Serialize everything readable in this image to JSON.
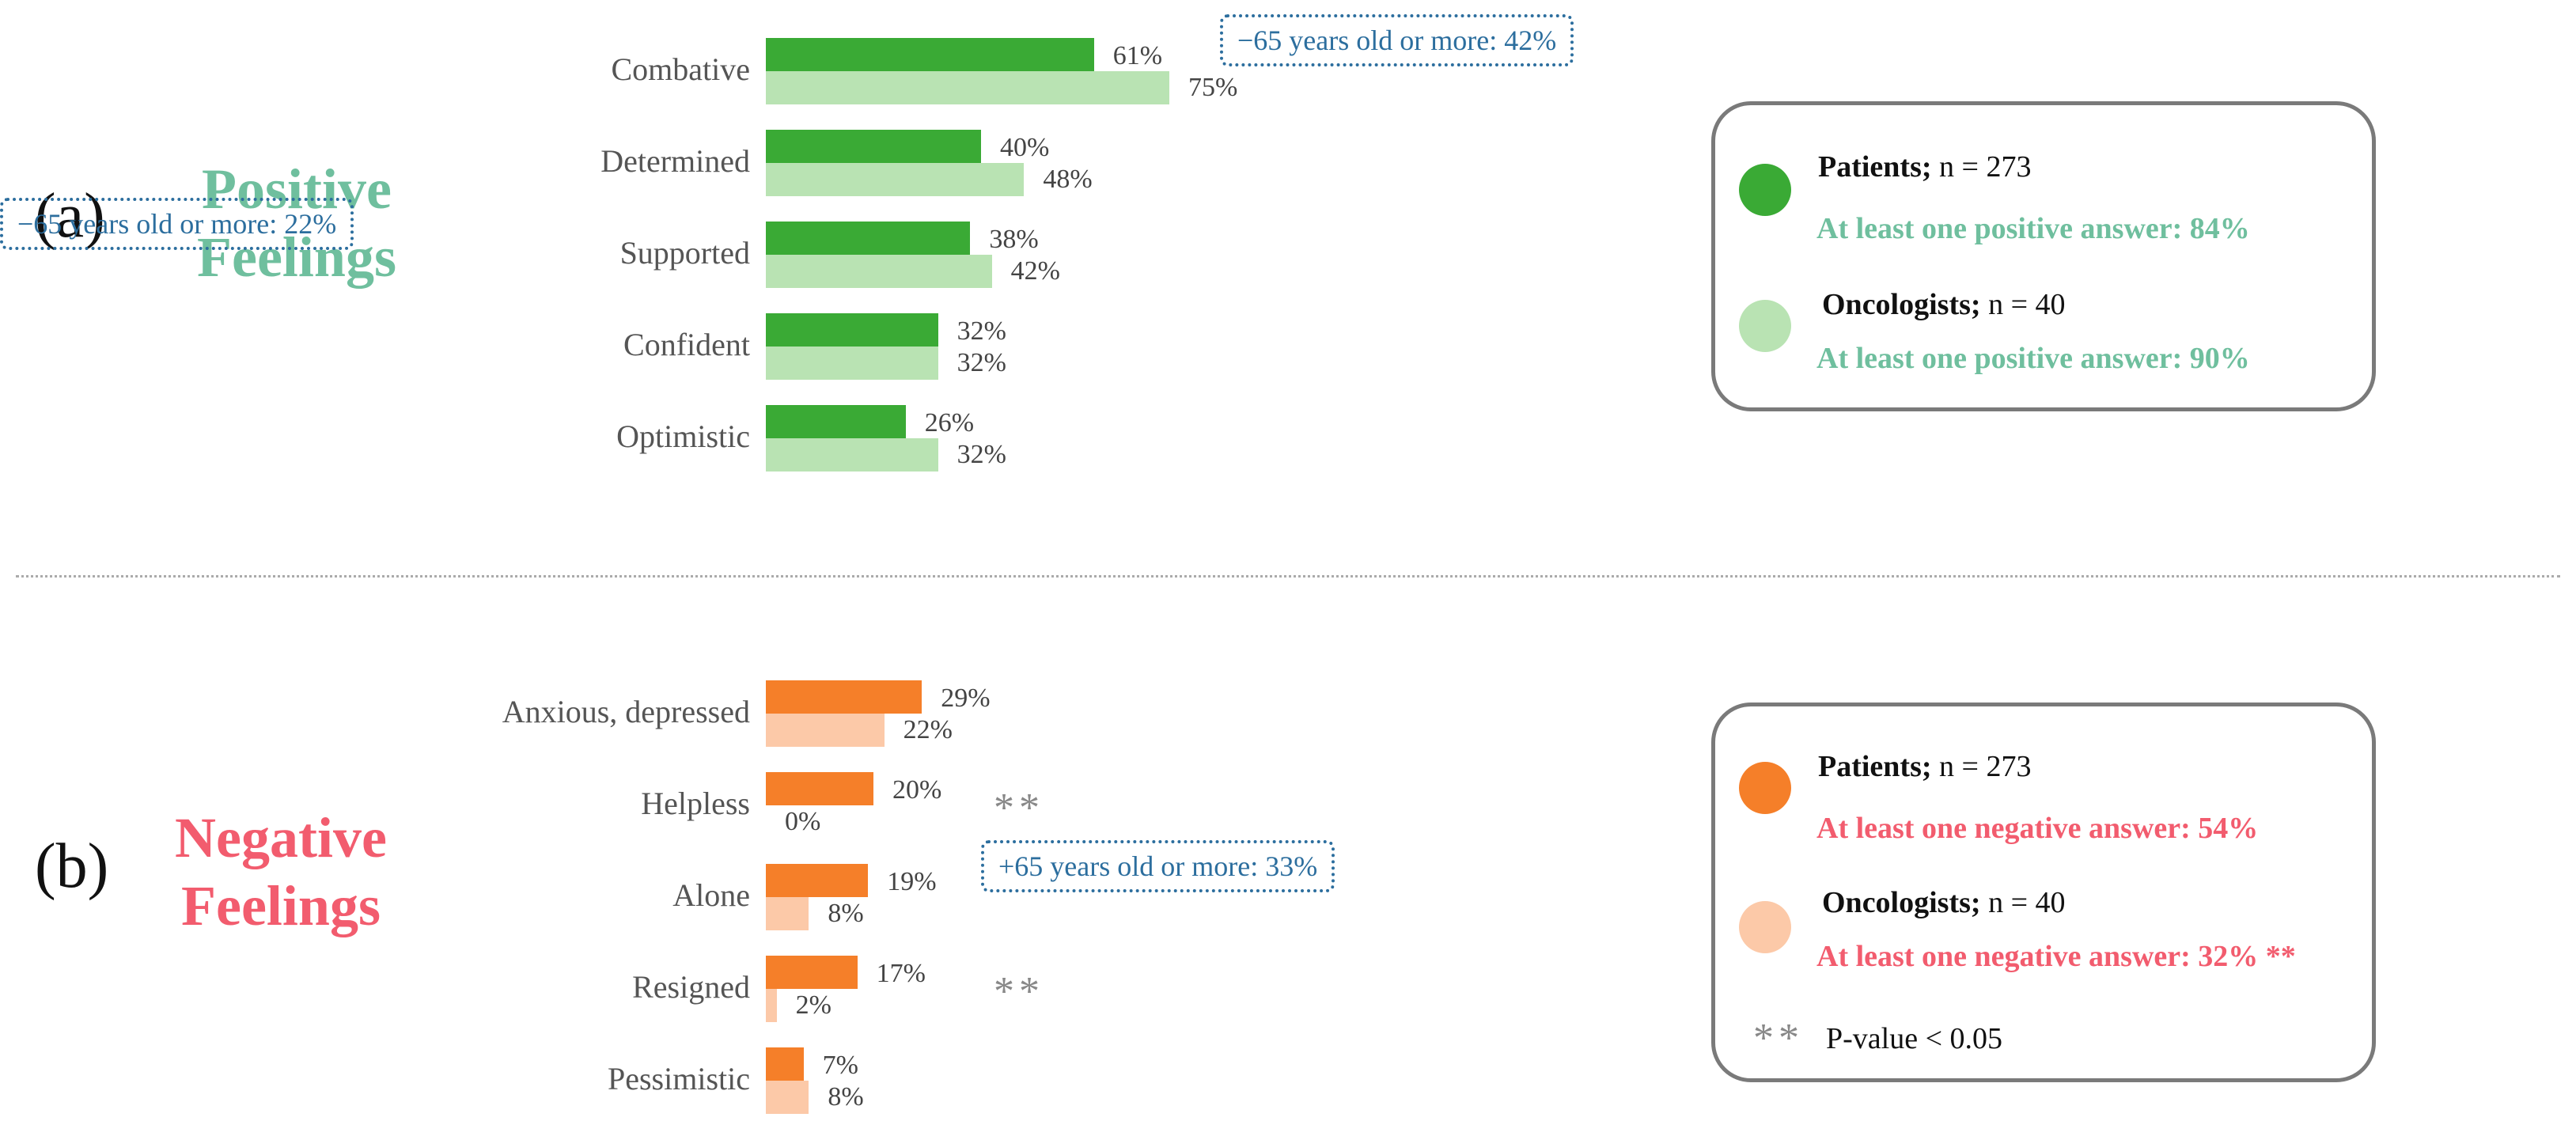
{
  "colors": {
    "positive_patients": "#3aaa35",
    "positive_oncologists": "#b9e3b3",
    "negative_patients": "#f57f29",
    "negative_oncologists": "#fcc9a8",
    "positive_title": "#6fbf9e",
    "negative_title": "#f25c6e",
    "note_border": "#2c6e9e"
  },
  "chart_data": [
    {
      "type": "bar",
      "panel_letter": "(a)",
      "title_line1": "Positive",
      "title_line2": "Feelings",
      "categories": [
        "Combative",
        "Determined",
        "Supported",
        "Confident",
        "Optimistic"
      ],
      "series": [
        {
          "name": "Patients",
          "values": [
            61,
            40,
            38,
            32,
            26
          ],
          "labels": [
            "61%",
            "40%",
            "38%",
            "32%",
            "26%"
          ]
        },
        {
          "name": "Oncologists",
          "values": [
            75,
            48,
            42,
            32,
            32
          ],
          "labels": [
            "75%",
            "48%",
            "42%",
            "32%",
            "32%"
          ]
        }
      ],
      "notes": [
        {
          "category_index": 0,
          "text": "−65 years old or more: 42%"
        },
        {
          "category_index": 2,
          "text": "−65 years old or more: 22%"
        }
      ],
      "significance": [],
      "legend": {
        "patients_label": "Patients;",
        "patients_n": " n = 273",
        "patients_summary": "At least one positive answer: 84%",
        "oncologists_label": "Oncologists;",
        "oncologists_n": " n = 40",
        "oncologists_summary": "At least one positive answer: 90%"
      }
    },
    {
      "type": "bar",
      "panel_letter": "(b)",
      "title_line1": "Negative",
      "title_line2": "Feelings",
      "categories": [
        "Anxious, depressed",
        "Helpless",
        "Alone",
        "Resigned",
        "Pessimistic"
      ],
      "series": [
        {
          "name": "Patients",
          "values": [
            29,
            20,
            19,
            17,
            7
          ],
          "labels": [
            "29%",
            "20%",
            "19%",
            "17%",
            "7%"
          ]
        },
        {
          "name": "Oncologists",
          "values": [
            22,
            0,
            8,
            2,
            8
          ],
          "labels": [
            "22%",
            "0%",
            "8%",
            "2%",
            "8%"
          ]
        }
      ],
      "notes": [
        {
          "category_index": 2,
          "text": "+65 years old or more: 33%"
        }
      ],
      "significance": [
        {
          "category_index": 1,
          "text": "**"
        },
        {
          "category_index": 3,
          "text": "**"
        }
      ],
      "legend": {
        "patients_label": "Patients;",
        "patients_n": " n = 273",
        "patients_summary": "At least one negative answer: 54%",
        "oncologists_label": "Oncologists;",
        "oncologists_n": " n = 40",
        "oncologists_summary": "At least one negative answer: 32% **",
        "pvalue_stars": "**",
        "pvalue_text": "P-value < 0.05"
      }
    }
  ]
}
